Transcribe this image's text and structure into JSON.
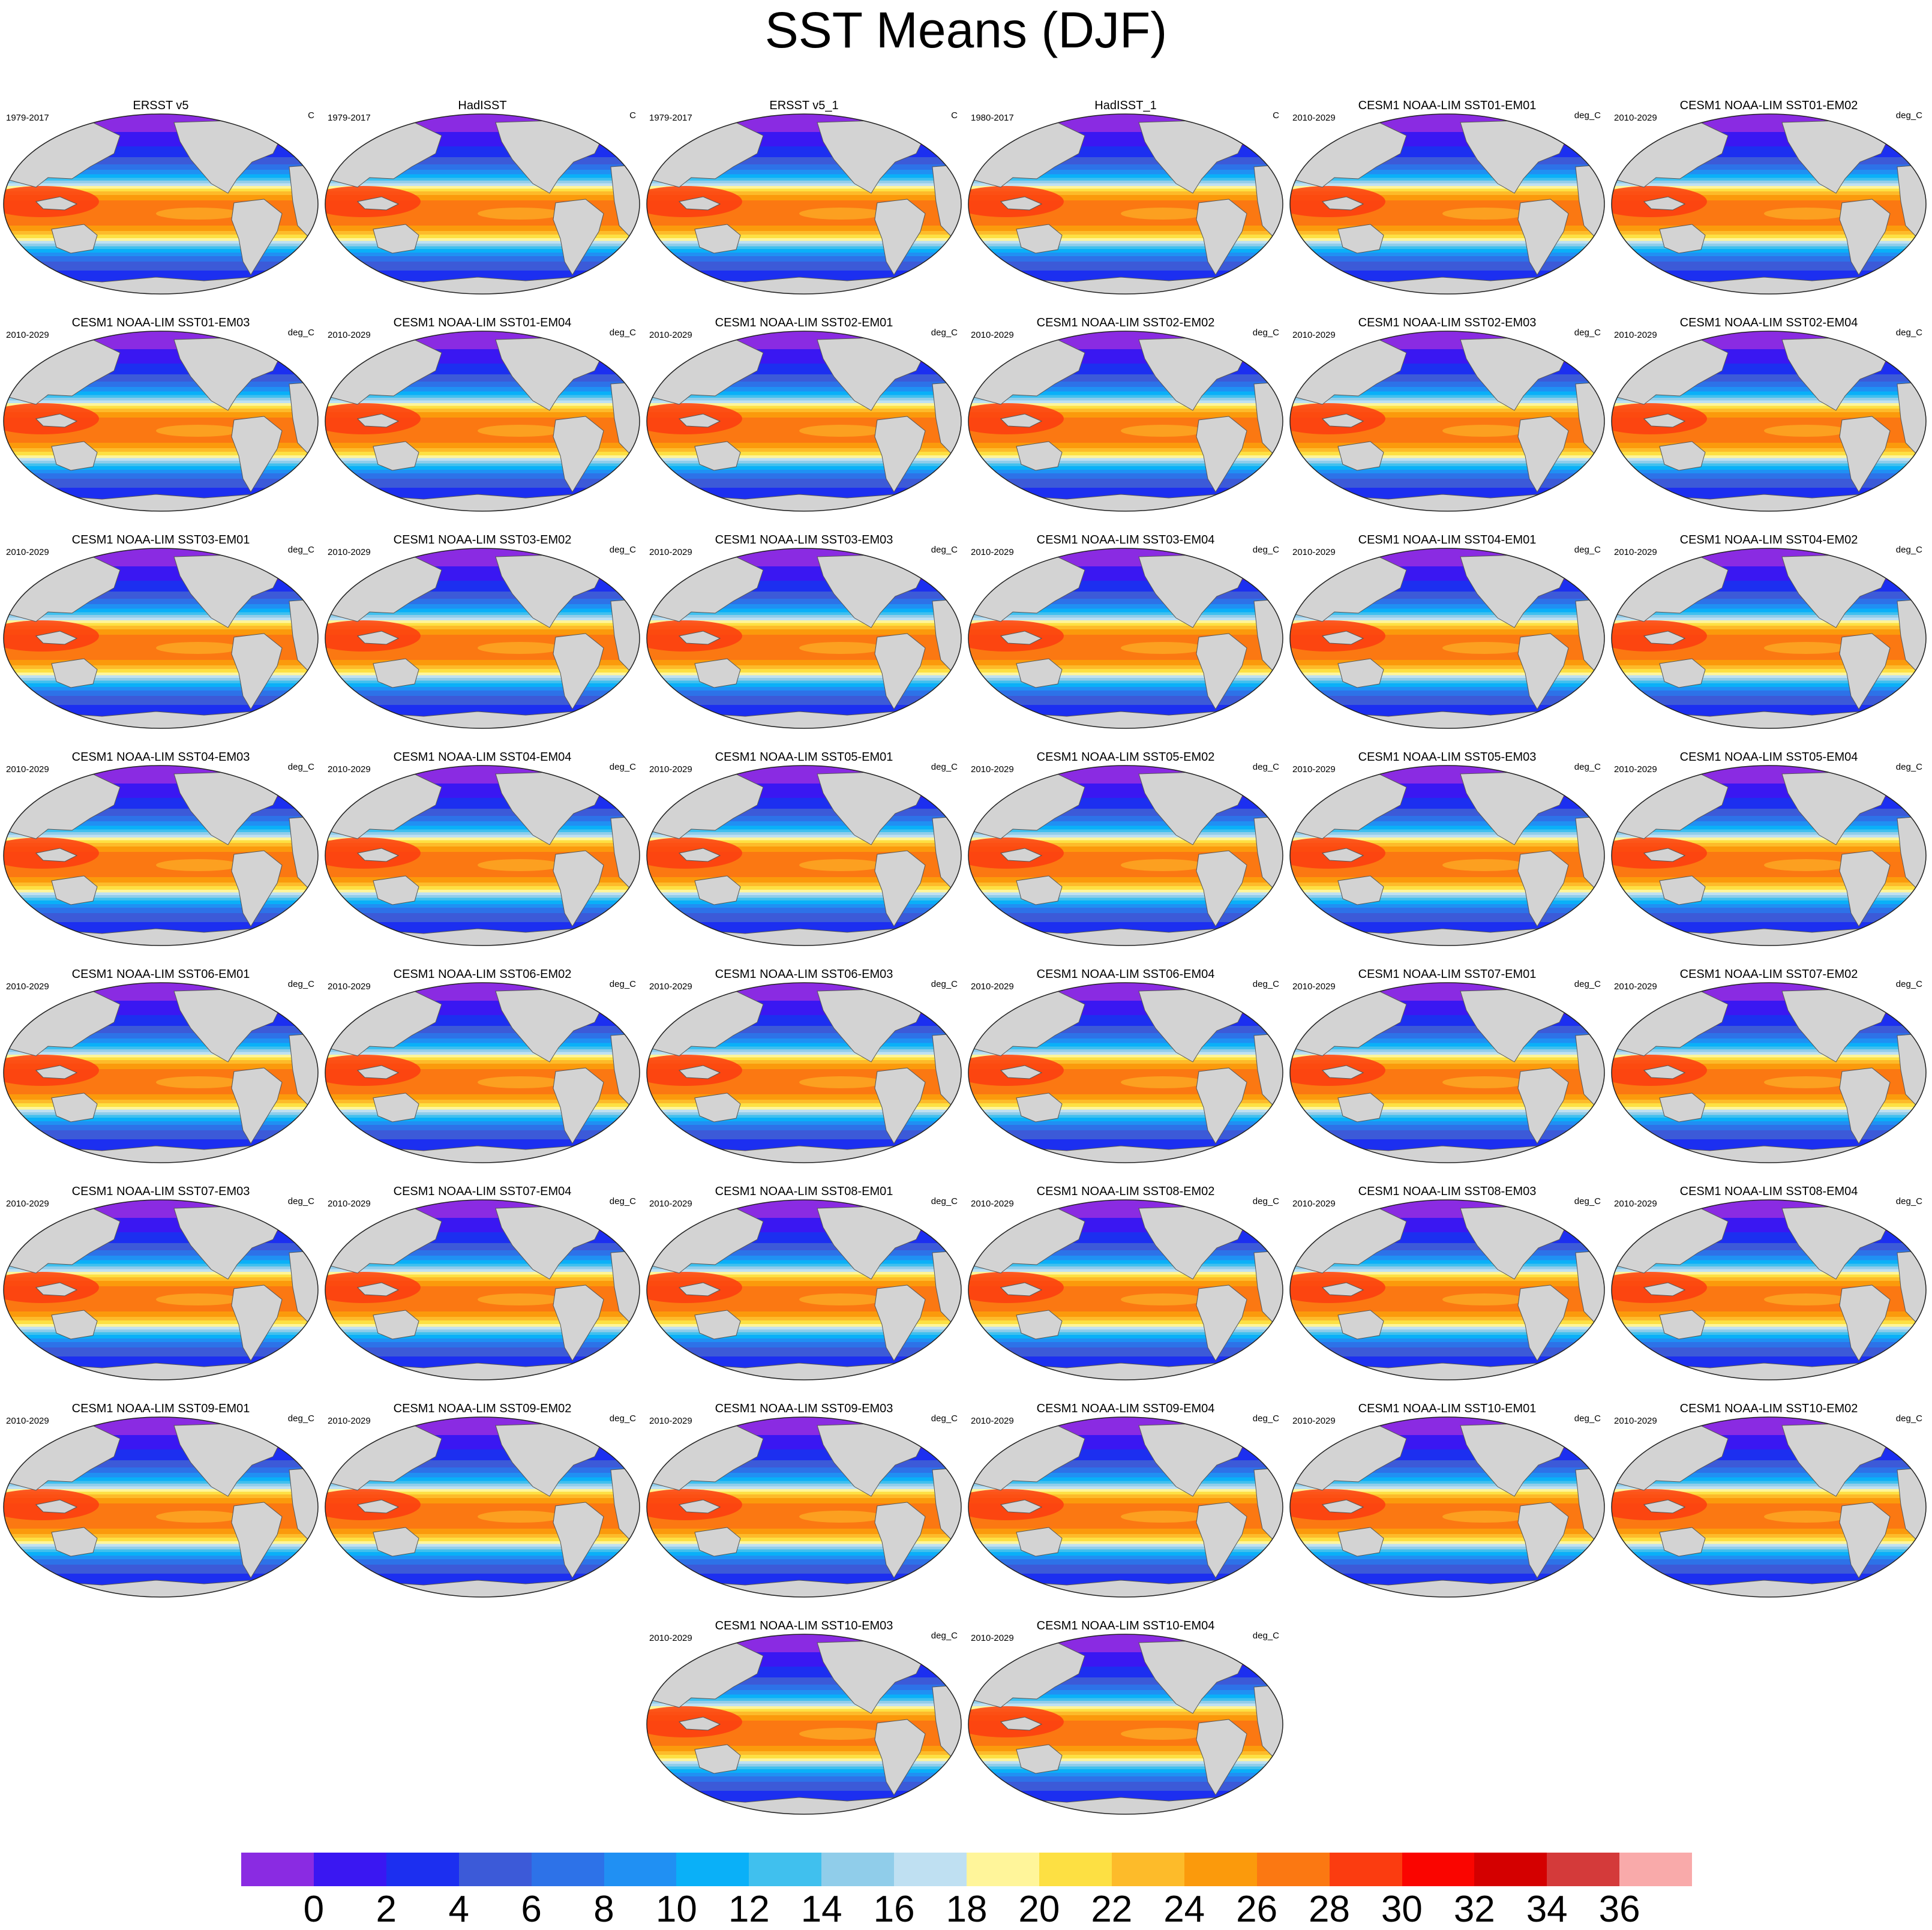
{
  "title": "SST Means (DJF)",
  "colorbar": {
    "colors": [
      "#8a2be2",
      "#3a17f2",
      "#1c2ff0",
      "#3c5ad8",
      "#2d72e8",
      "#2090f3",
      "#0ab0f8",
      "#40c0ee",
      "#90cdea",
      "#bfe0f2",
      "#fff59a",
      "#fde043",
      "#fdbb2a",
      "#fb9a0c",
      "#fb7812",
      "#fb3c10",
      "#fa0500",
      "#d40000",
      "#d43a3a",
      "#f9aaaa"
    ],
    "labels": [
      "0",
      "2",
      "4",
      "6",
      "8",
      "10",
      "12",
      "14",
      "16",
      "18",
      "20",
      "22",
      "24",
      "26",
      "28",
      "30",
      "32",
      "34",
      "36"
    ]
  },
  "panels": [
    {
      "title": "ERSST v5",
      "left": "1979-2017",
      "right": "C"
    },
    {
      "title": "HadISST",
      "left": "1979-2017",
      "right": "C"
    },
    {
      "title": "ERSST v5_1",
      "left": "1979-2017",
      "right": "C"
    },
    {
      "title": "HadISST_1",
      "left": "1980-2017",
      "right": "C"
    },
    {
      "title": "CESM1 NOAA-LIM SST01-EM01",
      "left": "2010-2029",
      "right": "deg_C"
    },
    {
      "title": "CESM1 NOAA-LIM SST01-EM02",
      "left": "2010-2029",
      "right": "deg_C"
    },
    {
      "title": "CESM1 NOAA-LIM SST01-EM03",
      "left": "2010-2029",
      "right": "deg_C"
    },
    {
      "title": "CESM1 NOAA-LIM SST01-EM04",
      "left": "2010-2029",
      "right": "deg_C"
    },
    {
      "title": "CESM1 NOAA-LIM SST02-EM01",
      "left": "2010-2029",
      "right": "deg_C"
    },
    {
      "title": "CESM1 NOAA-LIM SST02-EM02",
      "left": "2010-2029",
      "right": "deg_C"
    },
    {
      "title": "CESM1 NOAA-LIM SST02-EM03",
      "left": "2010-2029",
      "right": "deg_C"
    },
    {
      "title": "CESM1 NOAA-LIM SST02-EM04",
      "left": "2010-2029",
      "right": "deg_C"
    },
    {
      "title": "CESM1 NOAA-LIM SST03-EM01",
      "left": "2010-2029",
      "right": "deg_C"
    },
    {
      "title": "CESM1 NOAA-LIM SST03-EM02",
      "left": "2010-2029",
      "right": "deg_C"
    },
    {
      "title": "CESM1 NOAA-LIM SST03-EM03",
      "left": "2010-2029",
      "right": "deg_C"
    },
    {
      "title": "CESM1 NOAA-LIM SST03-EM04",
      "left": "2010-2029",
      "right": "deg_C"
    },
    {
      "title": "CESM1 NOAA-LIM SST04-EM01",
      "left": "2010-2029",
      "right": "deg_C"
    },
    {
      "title": "CESM1 NOAA-LIM SST04-EM02",
      "left": "2010-2029",
      "right": "deg_C"
    },
    {
      "title": "CESM1 NOAA-LIM SST04-EM03",
      "left": "2010-2029",
      "right": "deg_C"
    },
    {
      "title": "CESM1 NOAA-LIM SST04-EM04",
      "left": "2010-2029",
      "right": "deg_C"
    },
    {
      "title": "CESM1 NOAA-LIM SST05-EM01",
      "left": "2010-2029",
      "right": "deg_C"
    },
    {
      "title": "CESM1 NOAA-LIM SST05-EM02",
      "left": "2010-2029",
      "right": "deg_C"
    },
    {
      "title": "CESM1 NOAA-LIM SST05-EM03",
      "left": "2010-2029",
      "right": "deg_C"
    },
    {
      "title": "CESM1 NOAA-LIM SST05-EM04",
      "left": "2010-2029",
      "right": "deg_C"
    },
    {
      "title": "CESM1 NOAA-LIM SST06-EM01",
      "left": "2010-2029",
      "right": "deg_C"
    },
    {
      "title": "CESM1 NOAA-LIM SST06-EM02",
      "left": "2010-2029",
      "right": "deg_C"
    },
    {
      "title": "CESM1 NOAA-LIM SST06-EM03",
      "left": "2010-2029",
      "right": "deg_C"
    },
    {
      "title": "CESM1 NOAA-LIM SST06-EM04",
      "left": "2010-2029",
      "right": "deg_C"
    },
    {
      "title": "CESM1 NOAA-LIM SST07-EM01",
      "left": "2010-2029",
      "right": "deg_C"
    },
    {
      "title": "CESM1 NOAA-LIM SST07-EM02",
      "left": "2010-2029",
      "right": "deg_C"
    },
    {
      "title": "CESM1 NOAA-LIM SST07-EM03",
      "left": "2010-2029",
      "right": "deg_C"
    },
    {
      "title": "CESM1 NOAA-LIM SST07-EM04",
      "left": "2010-2029",
      "right": "deg_C"
    },
    {
      "title": "CESM1 NOAA-LIM SST08-EM01",
      "left": "2010-2029",
      "right": "deg_C"
    },
    {
      "title": "CESM1 NOAA-LIM SST08-EM02",
      "left": "2010-2029",
      "right": "deg_C"
    },
    {
      "title": "CESM1 NOAA-LIM SST08-EM03",
      "left": "2010-2029",
      "right": "deg_C"
    },
    {
      "title": "CESM1 NOAA-LIM SST08-EM04",
      "left": "2010-2029",
      "right": "deg_C"
    },
    {
      "title": "CESM1 NOAA-LIM SST09-EM01",
      "left": "2010-2029",
      "right": "deg_C"
    },
    {
      "title": "CESM1 NOAA-LIM SST09-EM02",
      "left": "2010-2029",
      "right": "deg_C"
    },
    {
      "title": "CESM1 NOAA-LIM SST09-EM03",
      "left": "2010-2029",
      "right": "deg_C"
    },
    {
      "title": "CESM1 NOAA-LIM SST09-EM04",
      "left": "2010-2029",
      "right": "deg_C"
    },
    {
      "title": "CESM1 NOAA-LIM SST10-EM01",
      "left": "2010-2029",
      "right": "deg_C"
    },
    {
      "title": "CESM1 NOAA-LIM SST10-EM02",
      "left": "2010-2029",
      "right": "deg_C"
    },
    {
      "title": "CESM1 NOAA-LIM SST10-EM03",
      "left": "2010-2029",
      "right": "deg_C"
    },
    {
      "title": "CESM1 NOAA-LIM SST10-EM04",
      "left": "2010-2029",
      "right": "deg_C"
    }
  ]
}
